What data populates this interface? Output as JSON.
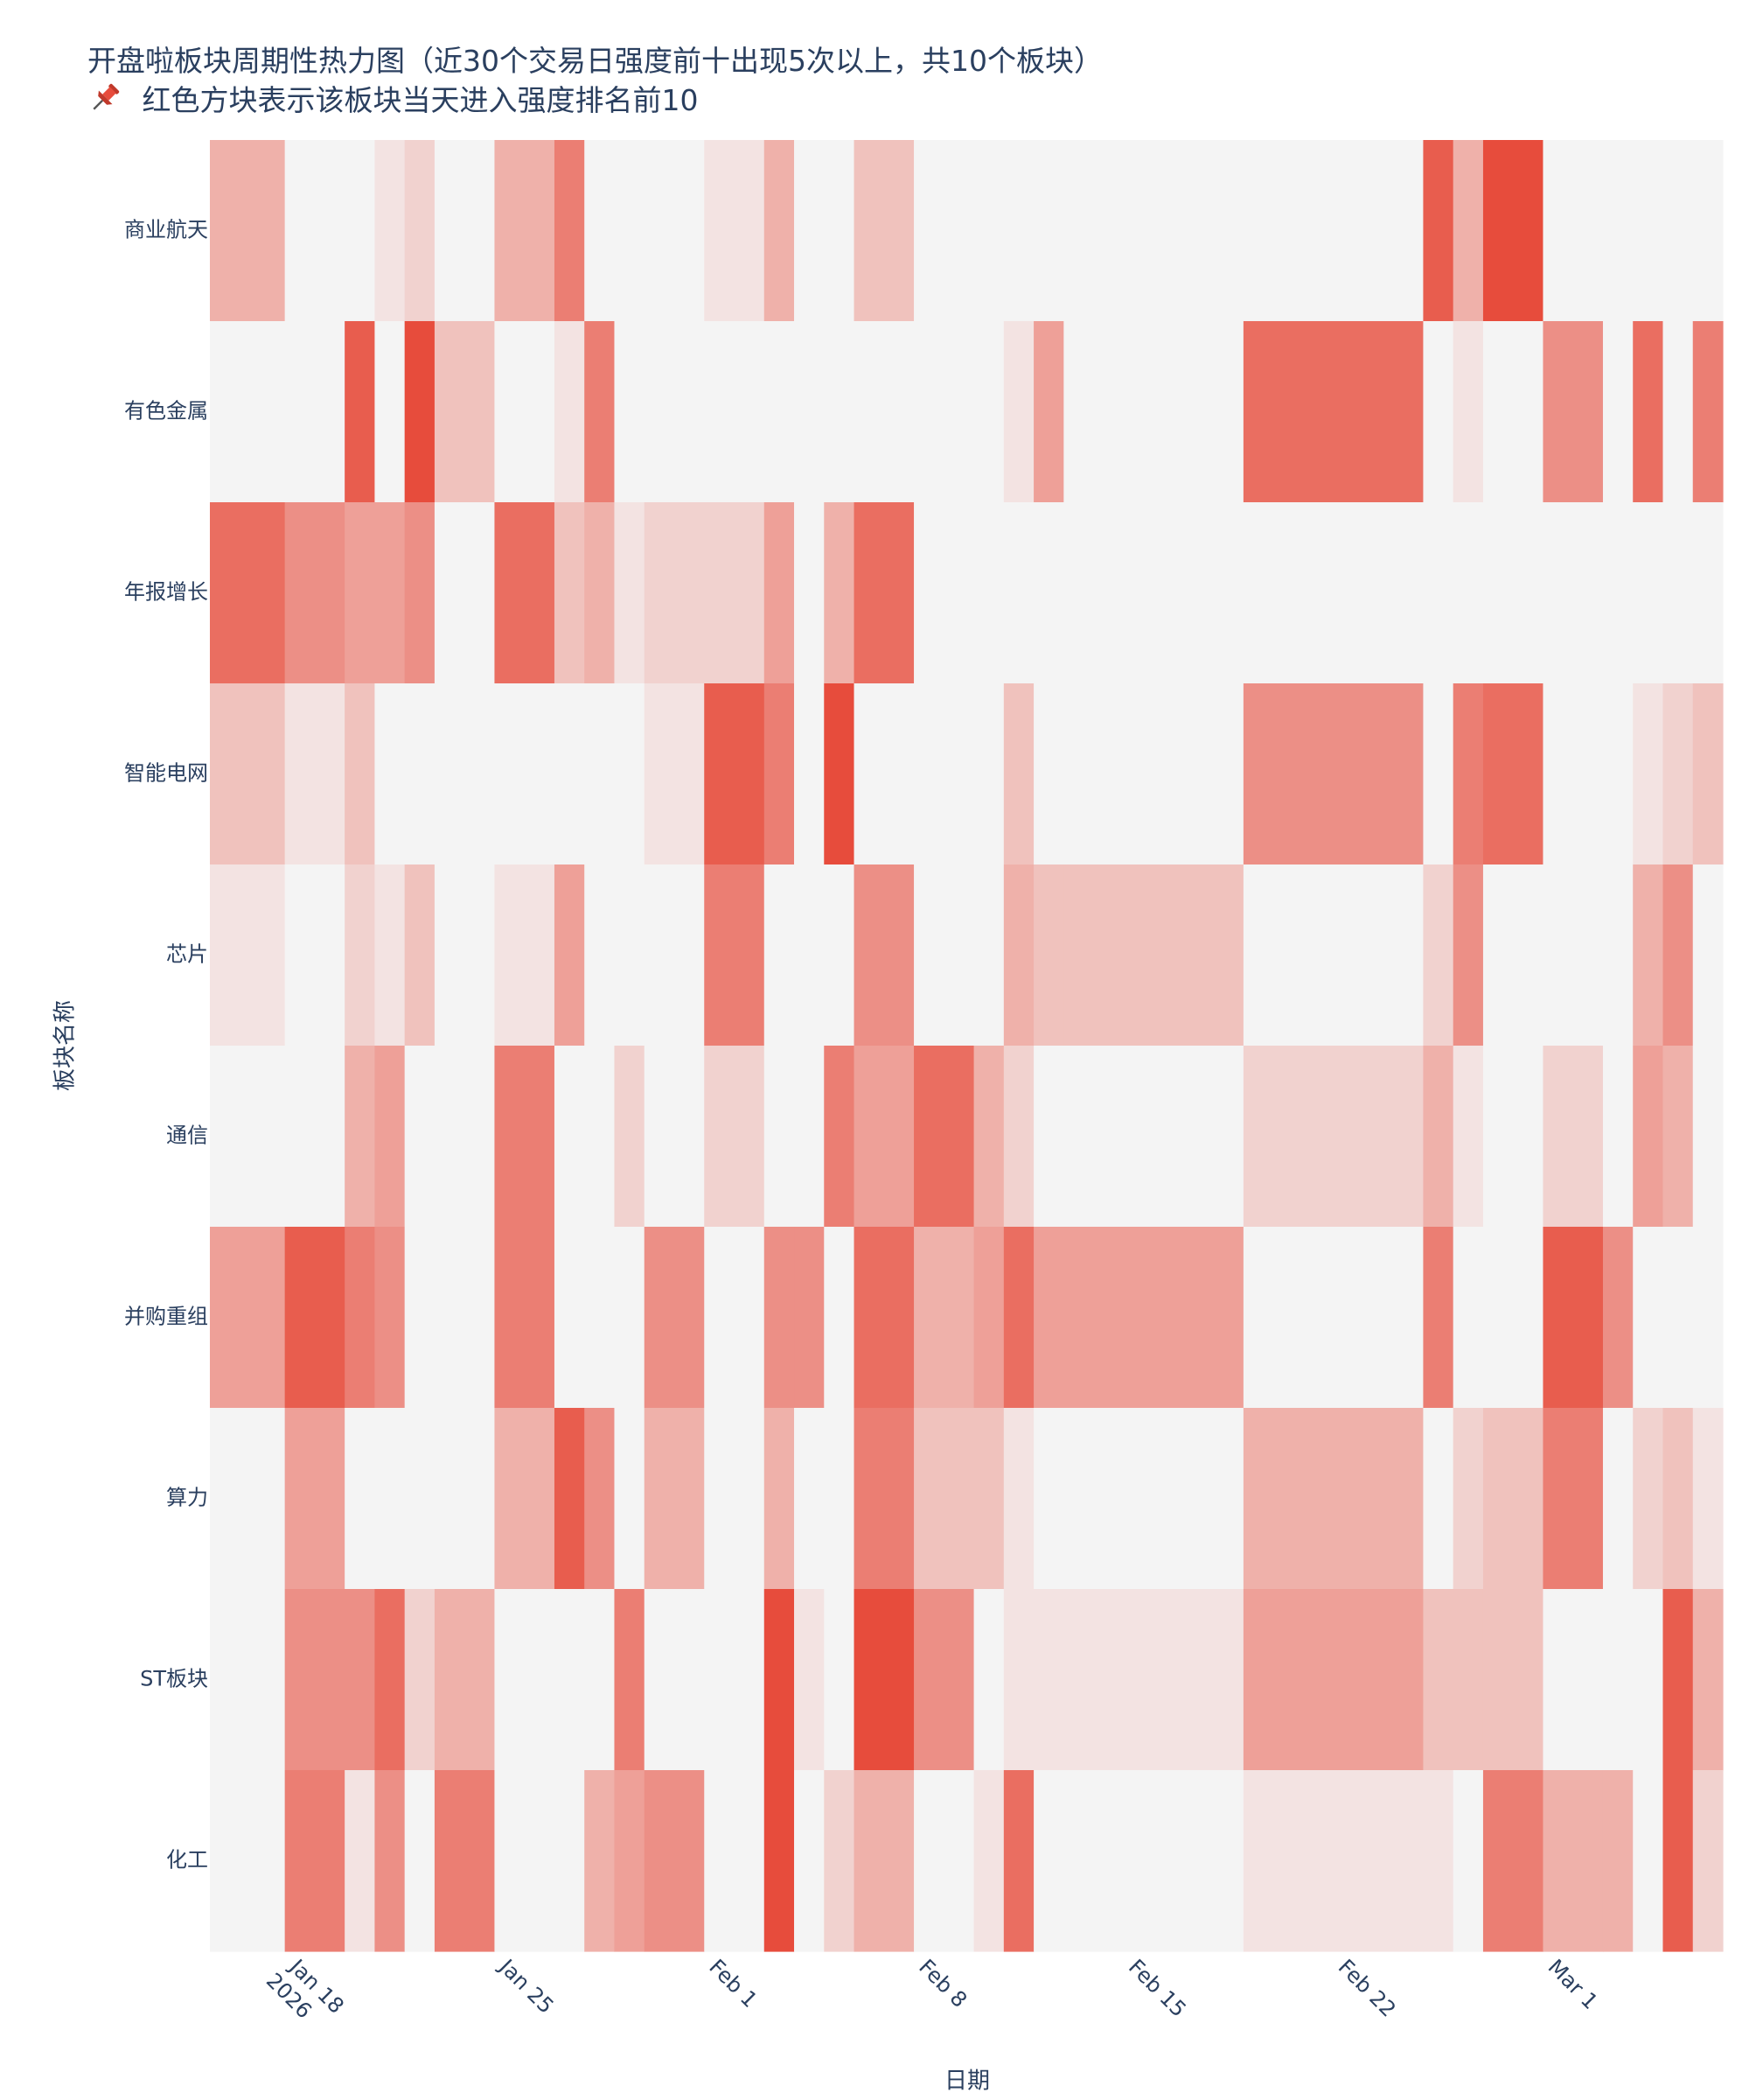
{
  "chart_data": {
    "type": "heatmap",
    "title": "开盘啦板块周期性热力图（近30个交易日强度前十出现5次以上，共10个板块）",
    "subtitle": "红色方块表示该板块当天进入强度排名前10",
    "xlabel": "日期",
    "ylabel": "板块名称",
    "subtitle_icon": "pushpin-icon",
    "x": [
      "2026-01-16",
      "2026-01-19",
      "2026-01-20",
      "2026-01-21",
      "2026-01-22",
      "2026-01-23",
      "2026-01-26",
      "2026-01-27",
      "2026-01-28",
      "2026-01-29",
      "2026-01-30",
      "2026-02-02",
      "2026-02-03",
      "2026-02-04",
      "2026-02-05",
      "2026-02-06",
      "2026-02-09",
      "2026-02-10",
      "2026-02-11",
      "2026-02-12",
      "2026-02-13",
      "2026-02-24",
      "2026-02-25",
      "2026-02-26",
      "2026-02-27",
      "2026-03-02",
      "2026-03-03",
      "2026-03-04",
      "2026-03-05",
      "2026-03-06"
    ],
    "x_ticks": [
      "2026-01-18",
      "2026-01-25",
      "2026-02-01",
      "2026-02-08",
      "2026-02-15",
      "2026-02-22",
      "2026-03-01"
    ],
    "x_tick_labels": [
      "Jan 18\n2026",
      "Jan 25",
      "Feb 1",
      "Feb 8",
      "Feb 15",
      "Feb 22",
      "Mar 1"
    ],
    "y": [
      "商业航天",
      "有色金属",
      "年报增长",
      "智能电网",
      "芯片",
      "通信",
      "并购重组",
      "算力",
      "ST板块",
      "化工"
    ],
    "z_range": [
      0,
      10
    ],
    "colorscale": {
      "low": "#f4f4f4",
      "high": "#e74c3c"
    },
    "z": [
      [
        4,
        0,
        0,
        1,
        2,
        0,
        4,
        7,
        0,
        0,
        0,
        1,
        4,
        0,
        0,
        3,
        0,
        0,
        0,
        0,
        0,
        0,
        9,
        4,
        10,
        0,
        0,
        0,
        0,
        0
      ],
      [
        0,
        0,
        9,
        0,
        10,
        3,
        0,
        1,
        7,
        0,
        0,
        0,
        0,
        0,
        0,
        0,
        0,
        0,
        1,
        5,
        0,
        8,
        0,
        1,
        0,
        6,
        0,
        8,
        0,
        7
      ],
      [
        8,
        6,
        5,
        5,
        6,
        0,
        8,
        3,
        4,
        1,
        2,
        2,
        5,
        0,
        4,
        8,
        0,
        0,
        0,
        0,
        0,
        0,
        0,
        0,
        0,
        0,
        0,
        0,
        0,
        0
      ],
      [
        3,
        1,
        3,
        0,
        0,
        0,
        0,
        0,
        0,
        0,
        1,
        9,
        7,
        0,
        10,
        0,
        0,
        0,
        3,
        0,
        0,
        6,
        0,
        7,
        8,
        0,
        0,
        1,
        2,
        3
      ],
      [
        1,
        0,
        2,
        1,
        3,
        0,
        1,
        5,
        0,
        0,
        0,
        7,
        0,
        0,
        0,
        6,
        0,
        0,
        4,
        3,
        3,
        0,
        2,
        6,
        0,
        0,
        0,
        4,
        6,
        0
      ],
      [
        0,
        0,
        4,
        5,
        0,
        0,
        7,
        0,
        0,
        2,
        0,
        2,
        0,
        0,
        7,
        5,
        8,
        4,
        2,
        0,
        0,
        2,
        4,
        1,
        0,
        2,
        0,
        5,
        4,
        0
      ],
      [
        5,
        9,
        7,
        6,
        0,
        0,
        7,
        0,
        0,
        0,
        6,
        0,
        6,
        6,
        0,
        8,
        4,
        5,
        8,
        5,
        5,
        0,
        7,
        0,
        0,
        9,
        6,
        0,
        0,
        0
      ],
      [
        0,
        5,
        0,
        0,
        0,
        0,
        4,
        9,
        6,
        0,
        4,
        0,
        4,
        0,
        0,
        7,
        3,
        3,
        1,
        0,
        0,
        4,
        0,
        2,
        3,
        7,
        0,
        2,
        3,
        1
      ],
      [
        0,
        6,
        6,
        8,
        2,
        4,
        0,
        0,
        0,
        7,
        0,
        0,
        10,
        1,
        0,
        10,
        6,
        0,
        1,
        1,
        1,
        5,
        3,
        3,
        3,
        0,
        0,
        0,
        9,
        4
      ],
      [
        0,
        7,
        1,
        6,
        0,
        7,
        0,
        0,
        4,
        5,
        6,
        0,
        10,
        0,
        2,
        4,
        0,
        1,
        8,
        0,
        0,
        1,
        1,
        0,
        7,
        4,
        4,
        0,
        9,
        2
      ]
    ]
  }
}
